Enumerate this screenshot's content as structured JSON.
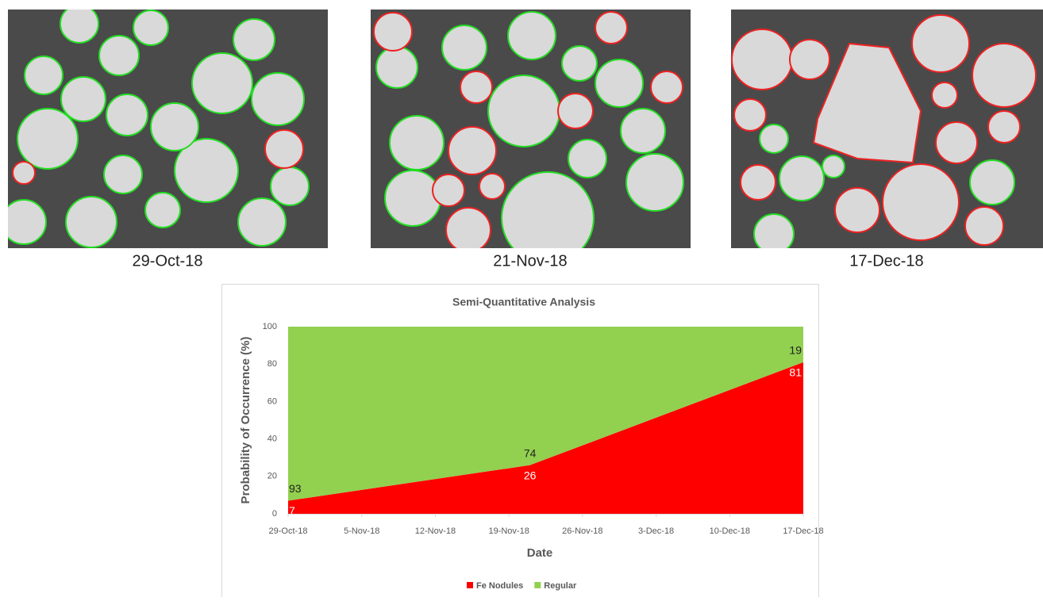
{
  "images": [
    {
      "caption": "29-Oct-18"
    },
    {
      "caption": "21-Nov-18"
    },
    {
      "caption": "17-Dec-18"
    }
  ],
  "chart_data": {
    "type": "stacked-area",
    "title": "Semi-Quantitative Analysis",
    "x_label": "Date",
    "y_label": "Probability of Occurrence (%)",
    "x": [
      "29-Oct-18",
      "21-Nov-18",
      "17-Dec-18"
    ],
    "series": [
      {
        "name": "Fe Nodules",
        "color": "#ff0000",
        "values": [
          7,
          26,
          81
        ]
      },
      {
        "name": "Regular",
        "color": "#92d050",
        "values": [
          93,
          74,
          19
        ]
      }
    ],
    "xlim": [
      "29-Oct-18",
      "17-Dec-18"
    ],
    "xticks": [
      "29-Oct-18",
      "5-Nov-18",
      "12-Nov-18",
      "19-Nov-18",
      "26-Nov-18",
      "3-Dec-18",
      "10-Dec-18",
      "17-Dec-18"
    ],
    "ylim": [
      0,
      100
    ],
    "yticks": [
      0,
      20,
      40,
      60,
      80,
      100
    ],
    "grid": false,
    "legend": "bottom"
  }
}
